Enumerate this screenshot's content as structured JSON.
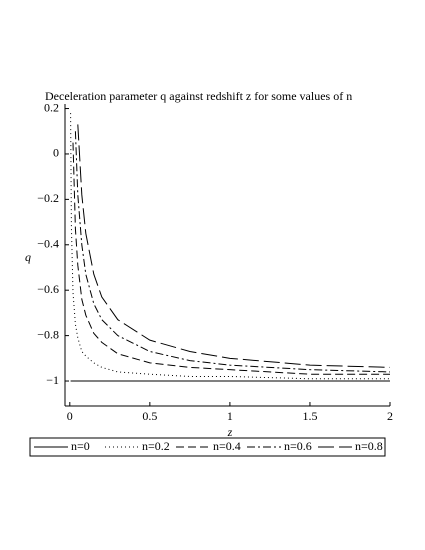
{
  "chart_data": {
    "type": "line",
    "title": "Deceleration parameter q against redshift z for some values of n",
    "x_label": "z",
    "y_label": "q",
    "x": [
      0.005,
      0.01,
      0.02,
      0.035,
      0.05,
      0.075,
      0.1,
      0.15,
      0.2,
      0.3,
      0.5,
      0.75,
      1,
      1.5,
      2
    ],
    "series": [
      {
        "name": "n=0",
        "color": "#000000",
        "dash": "none",
        "values": [
          -1,
          -1,
          -1,
          -1,
          -1,
          -1,
          -1,
          -1,
          -1,
          -1,
          -1,
          -1,
          -1,
          -1,
          -1
        ]
      },
      {
        "name": "n=0.2",
        "color": "#000000",
        "dash": "1,3",
        "values": [
          0.18,
          -0.32,
          -0.61,
          -0.75,
          -0.81,
          -0.87,
          -0.89,
          -0.92,
          -0.94,
          -0.96,
          -0.97,
          -0.98,
          -0.98,
          -0.99,
          -0.99
        ]
      },
      {
        "name": "n=0.4",
        "color": "#000000",
        "dash": "8,4",
        "values": [
          null,
          null,
          0.05,
          -0.33,
          -0.49,
          -0.64,
          -0.71,
          -0.79,
          -0.83,
          -0.88,
          -0.92,
          -0.94,
          -0.95,
          -0.97,
          -0.97
        ]
      },
      {
        "name": "n=0.6",
        "color": "#000000",
        "dash": "8,3,2,3",
        "values": [
          null,
          null,
          null,
          0.1,
          -0.18,
          -0.4,
          -0.53,
          -0.66,
          -0.73,
          -0.8,
          -0.87,
          -0.91,
          -0.93,
          -0.95,
          -0.96
        ]
      },
      {
        "name": "n=0.8",
        "color": "#000000",
        "dash": "16,5",
        "values": [
          null,
          null,
          null,
          null,
          0.13,
          -0.18,
          -0.35,
          -0.53,
          -0.63,
          -0.73,
          -0.82,
          -0.87,
          -0.9,
          -0.93,
          -0.94
        ]
      }
    ],
    "xlim": [
      -0.03,
      2.0
    ],
    "ylim": [
      -1.11,
      0.22
    ],
    "xticks": [
      0,
      0.5,
      1,
      1.5,
      2
    ],
    "yticks": [
      0.2,
      0,
      {
        "value": -0.2,
        "label": "−0.2"
      },
      {
        "value": -0.4,
        "label": "−0.4"
      },
      {
        "value": -0.6,
        "label": "−0.6"
      },
      {
        "value": -0.8,
        "label": "−0.8"
      },
      {
        "value": -1,
        "label": "−1"
      }
    ],
    "grid": false,
    "legend": "bottom"
  }
}
